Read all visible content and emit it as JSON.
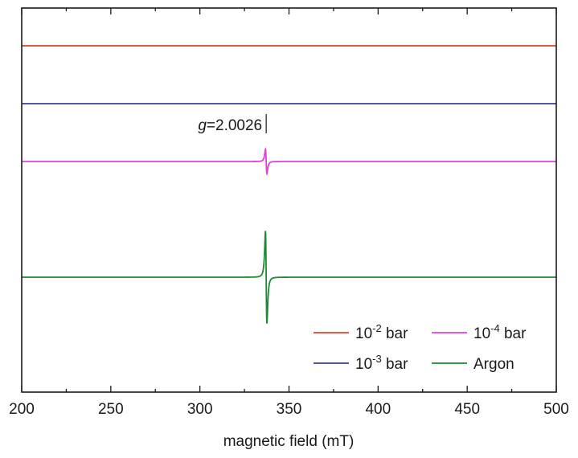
{
  "chart_data": {
    "type": "line",
    "title": "",
    "xlabel": "magnetic field (mT)",
    "ylabel": "",
    "xlim": [
      200,
      500
    ],
    "x_ticks": [
      200,
      250,
      300,
      350,
      400,
      450,
      500
    ],
    "x_tick_labels": [
      "200",
      "250",
      "300",
      "350",
      "400",
      "450",
      "500"
    ],
    "y_axis_ticks_labeled": false,
    "grid": false,
    "legend_position": "bottom-right",
    "series": [
      {
        "name": "10-2 bar",
        "label_base": "10",
        "label_exp": "-2",
        "label_unit": " bar",
        "color": "#d9432f",
        "baseline_offset": 4,
        "signal_amplitude": 0
      },
      {
        "name": "10-3 bar",
        "label_base": "10",
        "label_exp": "-3",
        "label_unit": " bar",
        "color": "#3b3f9a",
        "baseline_offset": 3,
        "signal_amplitude": 0
      },
      {
        "name": "10-4 bar",
        "label_base": "10",
        "label_exp": "-4",
        "label_unit": " bar",
        "color": "#e040e0",
        "baseline_offset": 2,
        "signal_amplitude": 0.42
      },
      {
        "name": "Argon",
        "label_base": "Argon",
        "label_exp": "",
        "label_unit": "",
        "color": "#1b8a34",
        "baseline_offset": 0,
        "signal_amplitude": 1.6
      }
    ],
    "signal_center_x": 337.2,
    "signal_width": 0.7,
    "annotations": [
      {
        "text_italic": "g",
        "text_rest": "=2.0026",
        "x": 337.2
      }
    ]
  }
}
